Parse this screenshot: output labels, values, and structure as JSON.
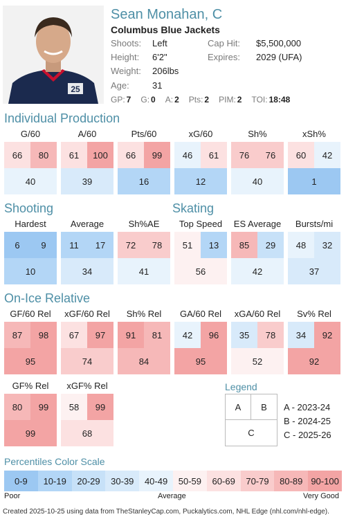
{
  "player": {
    "name": "Sean Monahan, C",
    "team": "Columbus Blue Jackets",
    "shoots_label": "Shoots:",
    "shoots": "Left",
    "height_label": "Height:",
    "height": "6'2\"",
    "weight_label": "Weight:",
    "weight": "206lbs",
    "age_label": "Age:",
    "age": "31",
    "caphit_label": "Cap Hit:",
    "caphit": "$5,500,000",
    "expires_label": "Expires:",
    "expires": "2029 (UFA)",
    "jersey_number": "25",
    "stats": [
      {
        "label": "GP:",
        "value": "7"
      },
      {
        "label": "G:",
        "value": "0"
      },
      {
        "label": "A:",
        "value": "2"
      },
      {
        "label": "Pts:",
        "value": "2"
      },
      {
        "label": "PIM:",
        "value": "2"
      },
      {
        "label": "TOI:",
        "value": "18:48"
      }
    ]
  },
  "sections": {
    "individual": "Individual Production",
    "shooting": "Shooting",
    "skating": "Skating",
    "onice": "On-Ice Relative"
  },
  "individual": [
    {
      "label": "G/60",
      "a": 66,
      "b": 80,
      "c": 40
    },
    {
      "label": "A/60",
      "a": 61,
      "b": 100,
      "c": 39
    },
    {
      "label": "Pts/60",
      "a": 66,
      "b": 99,
      "c": 16
    },
    {
      "label": "xG/60",
      "a": 46,
      "b": 61,
      "c": 12
    },
    {
      "label": "Sh%",
      "a": 76,
      "b": 76,
      "c": 40
    },
    {
      "label": "xSh%",
      "a": 60,
      "b": 42,
      "c": 1
    }
  ],
  "shooting": [
    {
      "label": "Hardest",
      "a": 6,
      "b": 9,
      "c": 10
    },
    {
      "label": "Average",
      "a": 11,
      "b": 17,
      "c": 34
    },
    {
      "label": "Sh%AE",
      "a": 72,
      "b": 78,
      "c": 41
    }
  ],
  "skating": [
    {
      "label": "Top Speed",
      "a": 51,
      "b": 13,
      "c": 56
    },
    {
      "label": "ES Average",
      "a": 85,
      "b": 29,
      "c": 42
    },
    {
      "label": "Bursts/mi",
      "a": 48,
      "b": 32,
      "c": 37
    }
  ],
  "onice": [
    {
      "label": "GF/60 Rel",
      "a": 87,
      "b": 98,
      "c": 95
    },
    {
      "label": "xGF/60 Rel",
      "a": 67,
      "b": 97,
      "c": 74
    },
    {
      "label": "Sh% Rel",
      "a": 91,
      "b": 81,
      "c": 84
    },
    {
      "label": "GA/60 Rel",
      "a": 42,
      "b": 96,
      "c": 95
    },
    {
      "label": "xGA/60 Rel",
      "a": 35,
      "b": 78,
      "c": 52
    },
    {
      "label": "Sv% Rel",
      "a": 34,
      "b": 92,
      "c": 92
    },
    {
      "label": "GF% Rel",
      "a": 80,
      "b": 99,
      "c": 99
    },
    {
      "label": "xGF% Rel",
      "a": 58,
      "b": 99,
      "c": 68
    }
  ],
  "legend": {
    "title": "Legend",
    "a": "A",
    "b": "B",
    "c": "C",
    "a_text": "A - 2023-24",
    "b_text": "B - 2024-25",
    "c_text": "C - 2025-26"
  },
  "scale": {
    "title": "Percentiles Color Scale",
    "bins": [
      "0-9",
      "10-19",
      "20-29",
      "30-39",
      "40-49",
      "50-59",
      "60-69",
      "70-79",
      "80-89",
      "90-100"
    ],
    "colors": [
      "#9cc8f2",
      "#b3d6f6",
      "#c7e1f8",
      "#d8eafa",
      "#e8f3fc",
      "#fdf1f1",
      "#fce1e1",
      "#f9cccc",
      "#f6b8b8",
      "#f3a4a4"
    ],
    "poor": "Poor",
    "average": "Average",
    "very_good": "Very Good"
  },
  "footer": "Created 2025-10-25 using data from TheStanleyCap.com, Puckalytics.com, NHL Edge (nhl.com/nhl-edge)."
}
